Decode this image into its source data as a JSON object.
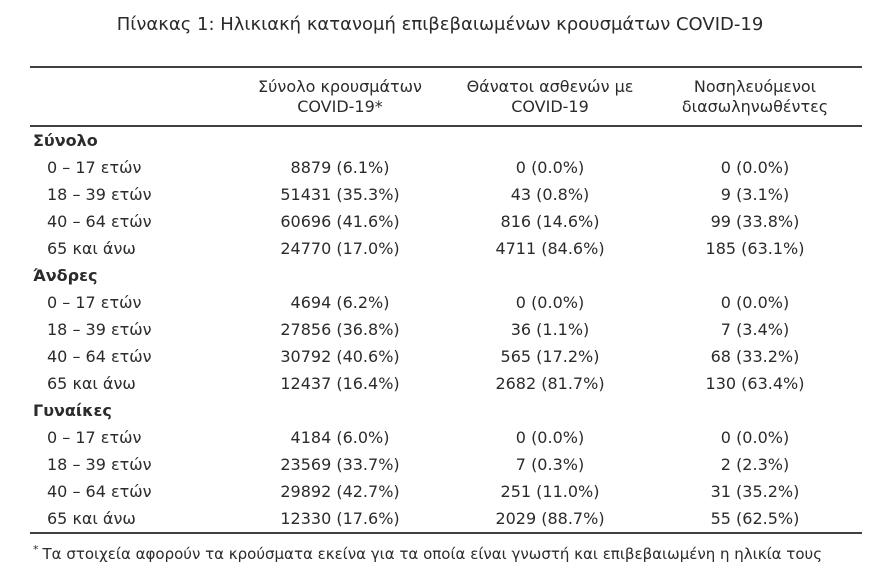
{
  "title": "Πίνακας 1: Ηλικιακή κατανομή επιβεβαιωμένων κρουσμάτων COVID-19",
  "colors": {
    "background": "#ffffff",
    "text": "#2b2b2b",
    "rule": "#404040"
  },
  "chart_data": {
    "type": "table",
    "title": "Πίνακας 1: Ηλικιακή κατανομή επιβεβαιωμένων κρουσμάτων COVID-19",
    "columns": [
      "",
      "Σύνολο κρουσμάτων COVID-19*",
      "Θάνατοι ασθενών με COVID-19",
      "Νοσηλευόμενοι διασωληνωθέντες"
    ],
    "headers": {
      "cases": {
        "line1": "Σύνολο κρουσμάτων",
        "line2": "COVID-19*"
      },
      "deaths": {
        "line1": "Θάνατοι ασθενών με",
        "line2": "COVID-19"
      },
      "intubated": {
        "line1": "Νοσηλευόμενοι",
        "line2": "διασωληνωθέντες"
      }
    },
    "sections": [
      {
        "label": "Σύνολο",
        "rows": [
          {
            "age": "0 – 17 ετών",
            "cases": "8879 (6.1%)",
            "deaths": "0 (0.0%)",
            "intubated": "0 (0.0%)"
          },
          {
            "age": "18 – 39 ετών",
            "cases": "51431 (35.3%)",
            "deaths": "43 (0.8%)",
            "intubated": "9 (3.1%)"
          },
          {
            "age": "40 – 64 ετών",
            "cases": "60696 (41.6%)",
            "deaths": "816 (14.6%)",
            "intubated": "99 (33.8%)"
          },
          {
            "age": "65 και άνω",
            "cases": "24770 (17.0%)",
            "deaths": "4711 (84.6%)",
            "intubated": "185 (63.1%)"
          }
        ]
      },
      {
        "label": "Άνδρες",
        "rows": [
          {
            "age": "0 – 17 ετών",
            "cases": "4694 (6.2%)",
            "deaths": "0 (0.0%)",
            "intubated": "0 (0.0%)"
          },
          {
            "age": "18 – 39 ετών",
            "cases": "27856 (36.8%)",
            "deaths": "36 (1.1%)",
            "intubated": "7 (3.4%)"
          },
          {
            "age": "40 – 64 ετών",
            "cases": "30792 (40.6%)",
            "deaths": "565 (17.2%)",
            "intubated": "68 (33.2%)"
          },
          {
            "age": "65 και άνω",
            "cases": "12437 (16.4%)",
            "deaths": "2682 (81.7%)",
            "intubated": "130 (63.4%)"
          }
        ]
      },
      {
        "label": "Γυναίκες",
        "rows": [
          {
            "age": "0 – 17 ετών",
            "cases": "4184 (6.0%)",
            "deaths": "0 (0.0%)",
            "intubated": "0 (0.0%)"
          },
          {
            "age": "18 – 39 ετών",
            "cases": "23569 (33.7%)",
            "deaths": "7 (0.3%)",
            "intubated": "2 (2.3%)"
          },
          {
            "age": "40 – 64 ετών",
            "cases": "29892 (42.7%)",
            "deaths": "251 (11.0%)",
            "intubated": "31 (35.2%)"
          },
          {
            "age": "65 και άνω",
            "cases": "12330 (17.6%)",
            "deaths": "2029 (88.7%)",
            "intubated": "55 (62.5%)"
          }
        ]
      }
    ]
  },
  "footnote": {
    "marker": "*",
    "text": "Τα στοιχεία αφορούν τα κρούσματα εκείνα για τα οποία είναι γνωστή και επιβεβαιωμένη η ηλικία τους"
  }
}
